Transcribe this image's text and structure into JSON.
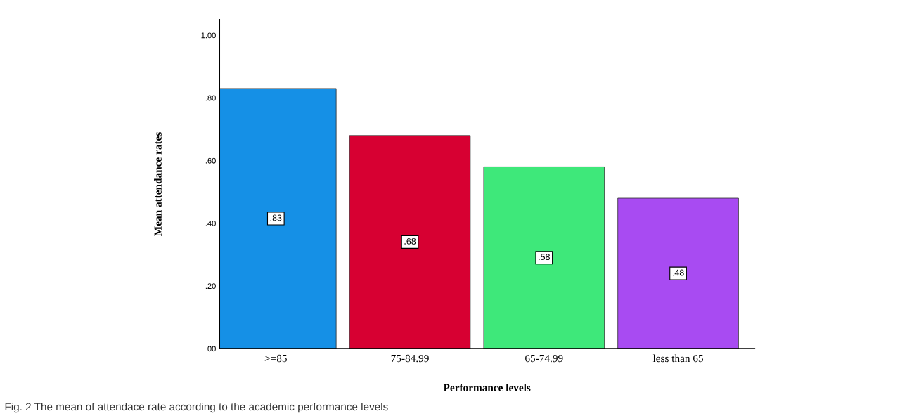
{
  "chart_data": {
    "type": "bar",
    "xlabel": "Performance levels",
    "ylabel": "Mean attendance rates",
    "categories": [
      ">=85",
      "75-84.99",
      "65-74.99",
      "less than 65"
    ],
    "values": [
      0.83,
      0.68,
      0.58,
      0.48
    ],
    "colors": [
      "#1590e6",
      "#d70032",
      "#3ee87a",
      "#a84bf2"
    ],
    "ylim": [
      0,
      1.05
    ],
    "yticks": [
      {
        "value": 0,
        "label": ".00"
      },
      {
        "value": 0.2,
        "label": ".20"
      },
      {
        "value": 0.4,
        "label": ".40"
      },
      {
        "value": 0.6,
        "label": ".60"
      },
      {
        "value": 0.8,
        "label": ".80"
      },
      {
        "value": 1.0,
        "label": "1.00"
      }
    ],
    "value_labels": [
      ".83",
      ".68",
      ".58",
      ".48"
    ],
    "grid": false,
    "legend": false,
    "annotations": [
      "Fig. 2 The mean of attendace rate according to the academic performance levels"
    ]
  }
}
